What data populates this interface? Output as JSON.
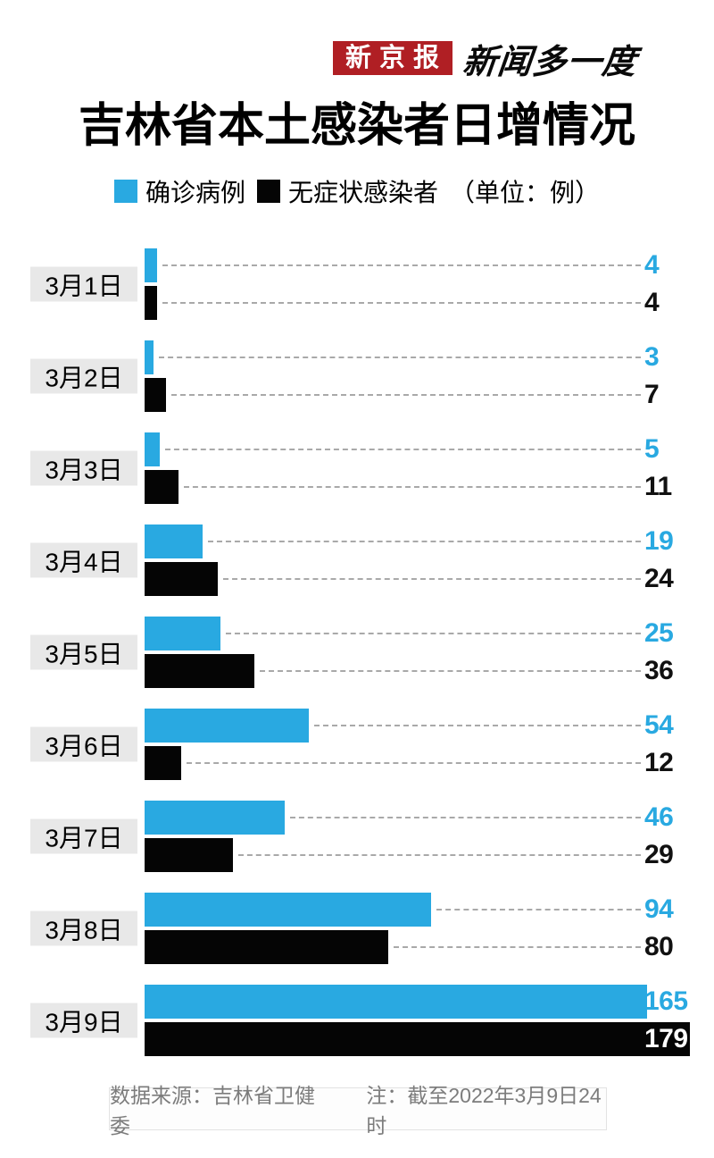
{
  "header": {
    "badge": "新京报",
    "tagline": "新闻多一度"
  },
  "title": "吉林省本土感染者日增情况",
  "legend": {
    "items": [
      {
        "label": "确诊病例",
        "color": "#29a9e1"
      },
      {
        "label": "无症状感染者",
        "color": "#050505"
      }
    ],
    "unit": "（单位：例）"
  },
  "chart_data": {
    "type": "bar",
    "orientation": "horizontal",
    "title": "吉林省本土感染者日增情况",
    "categories": [
      "3月1日",
      "3月2日",
      "3月3日",
      "3月4日",
      "3月5日",
      "3月6日",
      "3月7日",
      "3月8日",
      "3月9日"
    ],
    "series": [
      {
        "name": "确诊病例",
        "color": "#29a9e1",
        "values": [
          4,
          3,
          5,
          19,
          25,
          54,
          46,
          94,
          165
        ]
      },
      {
        "name": "无症状感染者",
        "color": "#050505",
        "values": [
          4,
          7,
          11,
          24,
          36,
          12,
          29,
          80,
          179
        ]
      }
    ],
    "unit": "例",
    "xlim": [
      0,
      179
    ],
    "value_labels": true,
    "leader_lines": "dashed",
    "legend_position": "top"
  },
  "footer": {
    "source": "数据来源：吉林省卫健委",
    "note": "注：截至2022年3月9日24时"
  },
  "colors": {
    "accent_blue": "#29a9e1",
    "bar_black": "#050505",
    "brand_red": "#b01f24",
    "date_label_bg": "#e8e8e8",
    "leader_dash": "#a9a9a9",
    "footer_text": "#7c7c7c"
  }
}
